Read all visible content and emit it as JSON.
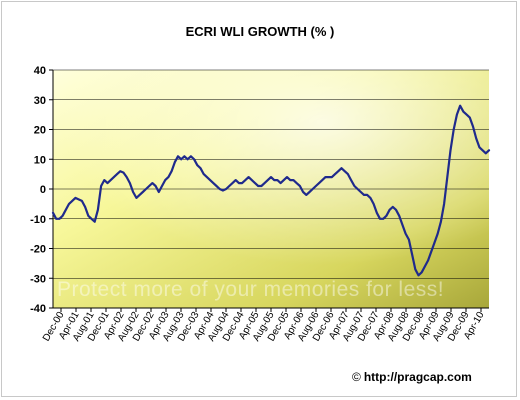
{
  "chart_data": {
    "type": "line",
    "title": "ECRI WLI GROWTH (% )",
    "xlabel": "",
    "ylabel": "",
    "ylim": [
      -40,
      40
    ],
    "yticks": [
      -40,
      -30,
      -20,
      -10,
      0,
      10,
      20,
      30,
      40
    ],
    "xticks": [
      "Dec-00",
      "Apr-01",
      "Aug-01",
      "Dec-01",
      "Apr-02",
      "Aug-02",
      "Dec-02",
      "Apr-03",
      "Aug-03",
      "Dec-03",
      "Apr-04",
      "Aug-04",
      "Dec-04",
      "Apr-05",
      "Aug-05",
      "Dec-05",
      "Apr-06",
      "Aug-06",
      "Dec-06",
      "Apr-07",
      "Aug-07",
      "Dec-07",
      "Apr-08",
      "Aug-08",
      "Dec-08",
      "Apr-09",
      "Aug-09",
      "Dec-09",
      "Apr-10"
    ],
    "grid": true,
    "legend": "none",
    "line_color": "#1f2a8c",
    "series": [
      {
        "values": [
          [
            0,
            -8
          ],
          [
            1,
            -10
          ],
          [
            2,
            -10
          ],
          [
            3,
            -9
          ],
          [
            4,
            -7
          ],
          [
            5,
            -5
          ],
          [
            6,
            -4
          ],
          [
            7,
            -3
          ],
          [
            8,
            -3.5
          ],
          [
            9,
            -4
          ],
          [
            10,
            -6
          ],
          [
            11,
            -9
          ],
          [
            12,
            -10
          ],
          [
            13,
            -11
          ],
          [
            14,
            -7
          ],
          [
            15,
            1
          ],
          [
            16,
            3
          ],
          [
            17,
            2
          ],
          [
            18,
            3
          ],
          [
            19,
            4
          ],
          [
            20,
            5
          ],
          [
            21,
            6
          ],
          [
            22,
            5.5
          ],
          [
            23,
            4
          ],
          [
            24,
            2
          ],
          [
            25,
            -1
          ],
          [
            26,
            -3
          ],
          [
            27,
            -2
          ],
          [
            28,
            -1
          ],
          [
            29,
            0
          ],
          [
            30,
            1
          ],
          [
            31,
            2
          ],
          [
            32,
            1
          ],
          [
            33,
            -1
          ],
          [
            34,
            1
          ],
          [
            35,
            3
          ],
          [
            36,
            4
          ],
          [
            37,
            6
          ],
          [
            38,
            9
          ],
          [
            39,
            11
          ],
          [
            40,
            10
          ],
          [
            41,
            11
          ],
          [
            42,
            10
          ],
          [
            43,
            11
          ],
          [
            44,
            10
          ],
          [
            45,
            8
          ],
          [
            46,
            7
          ],
          [
            47,
            5
          ],
          [
            48,
            4
          ],
          [
            49,
            3
          ],
          [
            50,
            2
          ],
          [
            51,
            1
          ],
          [
            52,
            0
          ],
          [
            53,
            -0.5
          ],
          [
            54,
            0
          ],
          [
            55,
            1
          ],
          [
            56,
            2
          ],
          [
            57,
            3
          ],
          [
            58,
            2
          ],
          [
            59,
            2
          ],
          [
            60,
            3
          ],
          [
            61,
            4
          ],
          [
            62,
            3
          ],
          [
            63,
            2
          ],
          [
            64,
            1
          ],
          [
            65,
            1
          ],
          [
            66,
            2
          ],
          [
            67,
            3
          ],
          [
            68,
            4
          ],
          [
            69,
            3
          ],
          [
            70,
            3
          ],
          [
            71,
            2
          ],
          [
            72,
            3
          ],
          [
            73,
            4
          ],
          [
            74,
            3
          ],
          [
            75,
            3
          ],
          [
            76,
            2
          ],
          [
            77,
            1
          ],
          [
            78,
            -1
          ],
          [
            79,
            -2
          ],
          [
            80,
            -1
          ],
          [
            81,
            0
          ],
          [
            82,
            1
          ],
          [
            83,
            2
          ],
          [
            84,
            3
          ],
          [
            85,
            4
          ],
          [
            86,
            4
          ],
          [
            87,
            4
          ],
          [
            88,
            5
          ],
          [
            89,
            6
          ],
          [
            90,
            7
          ],
          [
            91,
            6
          ],
          [
            92,
            5
          ],
          [
            93,
            3
          ],
          [
            94,
            1
          ],
          [
            95,
            0
          ],
          [
            96,
            -1
          ],
          [
            97,
            -2
          ],
          [
            98,
            -2
          ],
          [
            99,
            -3
          ],
          [
            100,
            -5
          ],
          [
            101,
            -8
          ],
          [
            102,
            -10
          ],
          [
            103,
            -10
          ],
          [
            104,
            -9
          ],
          [
            105,
            -7
          ],
          [
            106,
            -6
          ],
          [
            107,
            -7
          ],
          [
            108,
            -9
          ],
          [
            109,
            -12
          ],
          [
            110,
            -15
          ],
          [
            111,
            -17
          ],
          [
            112,
            -22
          ],
          [
            113,
            -27
          ],
          [
            114,
            -29
          ],
          [
            115,
            -28
          ],
          [
            116,
            -26
          ],
          [
            117,
            -24
          ],
          [
            118,
            -21
          ],
          [
            119,
            -18
          ],
          [
            120,
            -15
          ],
          [
            121,
            -11
          ],
          [
            122,
            -5
          ],
          [
            123,
            4
          ],
          [
            124,
            13
          ],
          [
            125,
            20
          ],
          [
            126,
            25
          ],
          [
            127,
            28
          ],
          [
            128,
            26
          ],
          [
            129,
            25
          ],
          [
            130,
            24
          ],
          [
            131,
            21
          ],
          [
            132,
            17
          ],
          [
            133,
            14
          ],
          [
            134,
            13
          ],
          [
            135,
            12
          ],
          [
            136,
            13
          ]
        ]
      }
    ],
    "watermark": "Protect more of your memories for less!",
    "credit_symbol": "©",
    "credit": "http://pragcap.com"
  }
}
